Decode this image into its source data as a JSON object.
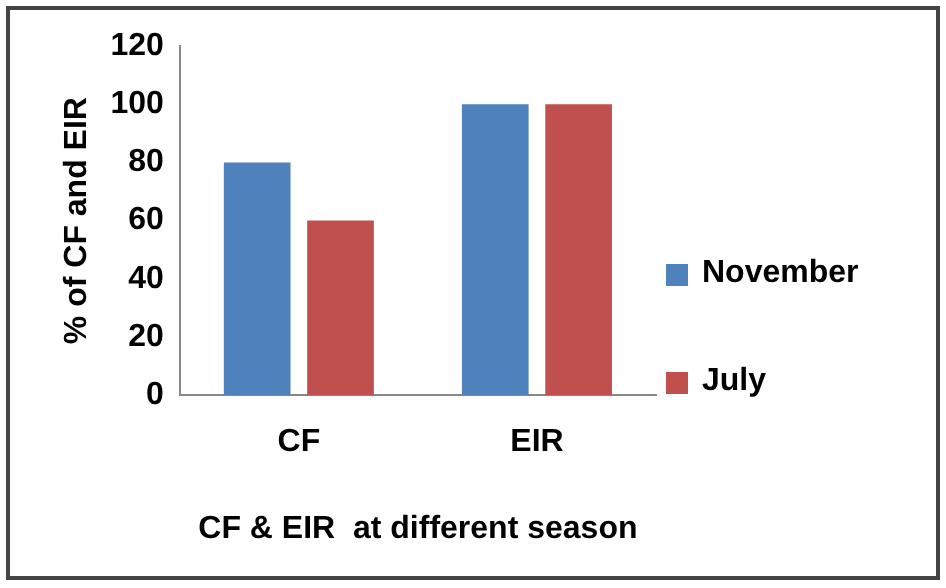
{
  "chart_data": {
    "type": "bar",
    "xlabel": "CF & EIR  at different season",
    "ylabel": "% of CF and EIR",
    "categories": [
      "CF",
      "EIR"
    ],
    "series": [
      {
        "name": "November",
        "color": "#4f81bd",
        "values": [
          80,
          100
        ]
      },
      {
        "name": "July",
        "color": "#c0504d",
        "values": [
          60,
          100
        ]
      }
    ],
    "ylim": [
      0,
      120
    ],
    "yticks": [
      0,
      20,
      40,
      60,
      80,
      100,
      120
    ],
    "grid": false,
    "legend": "right"
  }
}
